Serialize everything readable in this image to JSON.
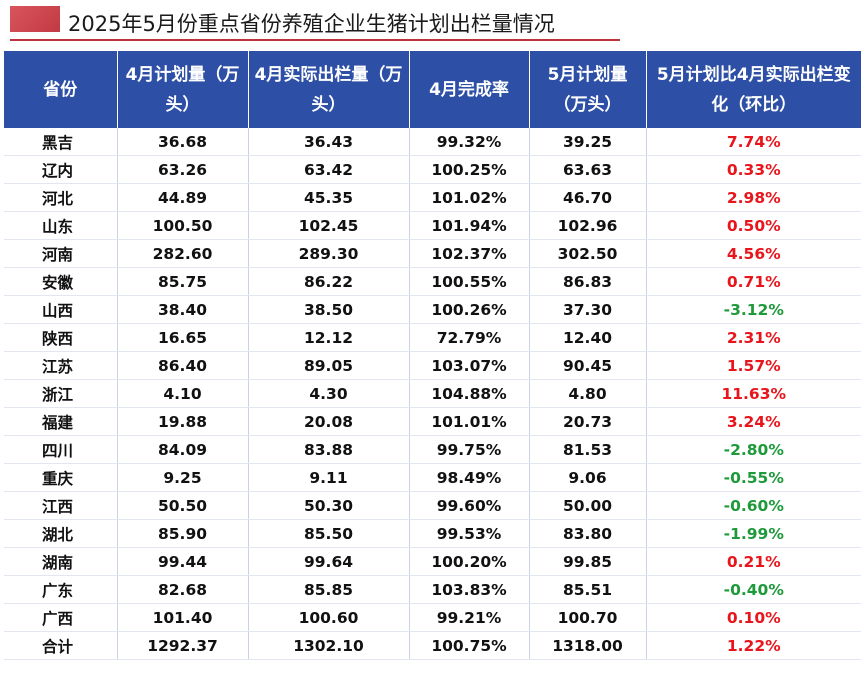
{
  "title": "2025年5月份重点省份养殖企业生猪计划出栏量情况",
  "colors": {
    "header_bg": "#2d4fa6",
    "positive": "#e8161c",
    "negative": "#1f9a3a",
    "title_accent": "#c0323b"
  },
  "table": {
    "headers": [
      "省份",
      "4月计划量（万头）",
      "4月实际出栏量（万头）",
      "4月完成率",
      "5月计划量（万头）",
      "5月计划比4月实际出栏变化（环比）"
    ],
    "rows": [
      {
        "province": "黑吉",
        "apr_plan": "36.68",
        "apr_actual": "36.43",
        "completion": "99.32%",
        "may_plan": "39.25",
        "change": "7.74%",
        "dir": "pos"
      },
      {
        "province": "辽内",
        "apr_plan": "63.26",
        "apr_actual": "63.42",
        "completion": "100.25%",
        "may_plan": "63.63",
        "change": "0.33%",
        "dir": "pos"
      },
      {
        "province": "河北",
        "apr_plan": "44.89",
        "apr_actual": "45.35",
        "completion": "101.02%",
        "may_plan": "46.70",
        "change": "2.98%",
        "dir": "pos"
      },
      {
        "province": "山东",
        "apr_plan": "100.50",
        "apr_actual": "102.45",
        "completion": "101.94%",
        "may_plan": "102.96",
        "change": "0.50%",
        "dir": "pos"
      },
      {
        "province": "河南",
        "apr_plan": "282.60",
        "apr_actual": "289.30",
        "completion": "102.37%",
        "may_plan": "302.50",
        "change": "4.56%",
        "dir": "pos"
      },
      {
        "province": "安徽",
        "apr_plan": "85.75",
        "apr_actual": "86.22",
        "completion": "100.55%",
        "may_plan": "86.83",
        "change": "0.71%",
        "dir": "pos"
      },
      {
        "province": "山西",
        "apr_plan": "38.40",
        "apr_actual": "38.50",
        "completion": "100.26%",
        "may_plan": "37.30",
        "change": "-3.12%",
        "dir": "neg"
      },
      {
        "province": "陕西",
        "apr_plan": "16.65",
        "apr_actual": "12.12",
        "completion": "72.79%",
        "may_plan": "12.40",
        "change": "2.31%",
        "dir": "pos"
      },
      {
        "province": "江苏",
        "apr_plan": "86.40",
        "apr_actual": "89.05",
        "completion": "103.07%",
        "may_plan": "90.45",
        "change": "1.57%",
        "dir": "pos"
      },
      {
        "province": "浙江",
        "apr_plan": "4.10",
        "apr_actual": "4.30",
        "completion": "104.88%",
        "may_plan": "4.80",
        "change": "11.63%",
        "dir": "pos"
      },
      {
        "province": "福建",
        "apr_plan": "19.88",
        "apr_actual": "20.08",
        "completion": "101.01%",
        "may_plan": "20.73",
        "change": "3.24%",
        "dir": "pos"
      },
      {
        "province": "四川",
        "apr_plan": "84.09",
        "apr_actual": "83.88",
        "completion": "99.75%",
        "may_plan": "81.53",
        "change": "-2.80%",
        "dir": "neg"
      },
      {
        "province": "重庆",
        "apr_plan": "9.25",
        "apr_actual": "9.11",
        "completion": "98.49%",
        "may_plan": "9.06",
        "change": "-0.55%",
        "dir": "neg"
      },
      {
        "province": "江西",
        "apr_plan": "50.50",
        "apr_actual": "50.30",
        "completion": "99.60%",
        "may_plan": "50.00",
        "change": "-0.60%",
        "dir": "neg"
      },
      {
        "province": "湖北",
        "apr_plan": "85.90",
        "apr_actual": "85.50",
        "completion": "99.53%",
        "may_plan": "83.80",
        "change": "-1.99%",
        "dir": "neg"
      },
      {
        "province": "湖南",
        "apr_plan": "99.44",
        "apr_actual": "99.64",
        "completion": "100.20%",
        "may_plan": "99.85",
        "change": "0.21%",
        "dir": "pos"
      },
      {
        "province": "广东",
        "apr_plan": "82.68",
        "apr_actual": "85.85",
        "completion": "103.83%",
        "may_plan": "85.51",
        "change": "-0.40%",
        "dir": "neg"
      },
      {
        "province": "广西",
        "apr_plan": "101.40",
        "apr_actual": "100.60",
        "completion": "99.21%",
        "may_plan": "100.70",
        "change": "0.10%",
        "dir": "pos"
      },
      {
        "province": "合计",
        "apr_plan": "1292.37",
        "apr_actual": "1302.10",
        "completion": "100.75%",
        "may_plan": "1318.00",
        "change": "1.22%",
        "dir": "pos"
      }
    ]
  }
}
